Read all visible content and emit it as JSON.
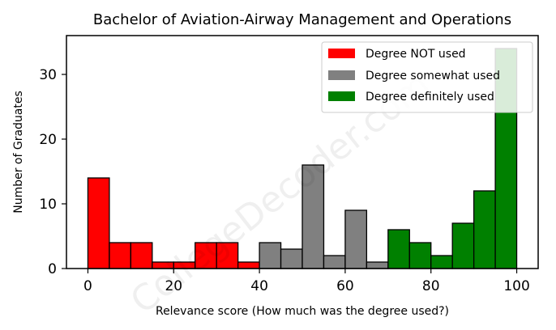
{
  "chart_data": {
    "type": "bar",
    "title": "Bachelor of Aviation-Airway Management and Operations",
    "xlabel": "Relevance score (How much was the degree used?)",
    "ylabel": "Number of Graduates",
    "xlim": [
      -5,
      105
    ],
    "ylim": [
      0,
      36
    ],
    "xticks": [
      0,
      20,
      40,
      60,
      80,
      100
    ],
    "yticks": [
      0,
      10,
      20,
      30
    ],
    "bin_width": 5,
    "grid": false,
    "legend_position": "top-right",
    "series": [
      {
        "name": "Degree NOT used",
        "color": "#ff0000",
        "bins": [
          {
            "x": 0,
            "count": 14
          },
          {
            "x": 5,
            "count": 4
          },
          {
            "x": 10,
            "count": 4
          },
          {
            "x": 15,
            "count": 1
          },
          {
            "x": 20,
            "count": 1
          },
          {
            "x": 25,
            "count": 4
          },
          {
            "x": 30,
            "count": 4
          },
          {
            "x": 35,
            "count": 1
          }
        ]
      },
      {
        "name": "Degree somewhat used",
        "color": "#808080",
        "bins": [
          {
            "x": 40,
            "count": 4
          },
          {
            "x": 45,
            "count": 3
          },
          {
            "x": 50,
            "count": 16
          },
          {
            "x": 55,
            "count": 2
          },
          {
            "x": 60,
            "count": 9
          },
          {
            "x": 65,
            "count": 1
          }
        ]
      },
      {
        "name": "Degree definitely used",
        "color": "#008000",
        "bins": [
          {
            "x": 70,
            "count": 6
          },
          {
            "x": 75,
            "count": 4
          },
          {
            "x": 80,
            "count": 2
          },
          {
            "x": 85,
            "count": 7
          },
          {
            "x": 90,
            "count": 12
          },
          {
            "x": 95,
            "count": 34
          }
        ]
      }
    ],
    "watermark": "CollegeDecoder.com"
  }
}
